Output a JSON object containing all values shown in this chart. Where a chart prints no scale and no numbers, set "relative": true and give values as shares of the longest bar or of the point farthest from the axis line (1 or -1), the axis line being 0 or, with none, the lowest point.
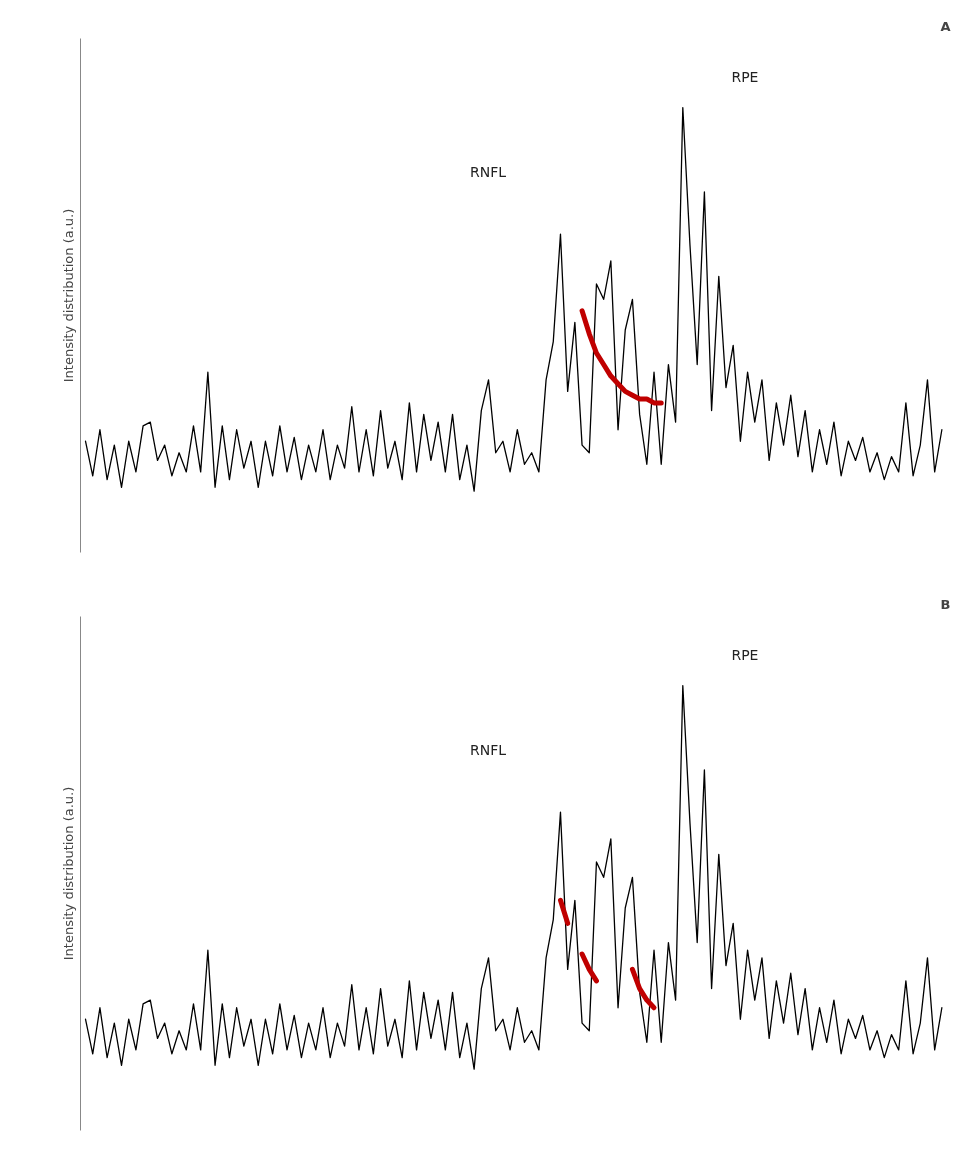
{
  "chart_data": [
    {
      "type": "line",
      "title": "A",
      "ylabel": "Intensity distribution (a.u.)",
      "relative": true,
      "grid": false,
      "annotations": [
        "RNFL",
        "RPE"
      ],
      "categories": [
        null,
        null,
        null,
        null,
        null,
        null,
        null,
        null,
        null,
        null,
        null,
        null,
        null,
        null,
        null,
        null,
        null,
        null,
        null,
        null,
        null,
        null,
        null,
        null,
        null,
        null,
        null,
        null,
        null,
        null,
        null,
        null,
        null,
        null,
        null,
        null,
        null,
        null,
        null,
        null,
        null,
        null,
        null,
        null,
        null,
        null,
        null,
        null,
        null,
        null,
        null,
        null,
        null,
        null,
        null,
        null,
        null,
        null,
        null,
        null,
        null,
        null,
        null,
        null,
        null,
        null,
        null,
        null,
        null,
        null,
        null,
        null,
        null,
        null,
        null,
        null,
        null,
        null,
        null,
        null,
        null,
        null,
        null,
        null,
        null,
        null,
        null,
        null,
        null,
        null,
        null,
        null,
        null,
        null,
        null,
        null,
        null,
        null,
        null,
        null,
        null,
        null,
        null,
        null,
        null,
        null,
        null,
        null,
        null,
        null,
        null,
        null,
        null,
        null,
        null,
        null,
        null,
        null,
        null,
        null
      ],
      "series": [
        {
          "color": "#000000",
          "values": [
            0.13,
            0.04,
            0.16,
            0.03,
            0.12,
            0.01,
            0.13,
            0.05,
            0.17,
            0.18,
            0.08,
            0.12,
            0.04,
            0.1,
            0.05,
            0.17,
            0.05,
            0.31,
            0.01,
            0.17,
            0.03,
            0.16,
            0.06,
            0.13,
            0.01,
            0.13,
            0.04,
            0.17,
            0.05,
            0.14,
            0.03,
            0.12,
            0.05,
            0.16,
            0.03,
            0.12,
            0.06,
            0.22,
            0.05,
            0.16,
            0.04,
            0.21,
            0.06,
            0.13,
            0.03,
            0.23,
            0.05,
            0.2,
            0.08,
            0.18,
            0.05,
            0.2,
            0.03,
            0.12,
            0,
            0.21,
            0.29,
            0.1,
            0.13,
            0.05,
            0.16,
            0.07,
            0.1,
            0.05,
            0.29,
            0.39,
            0.67,
            0.26,
            0.44,
            0.12,
            0.1,
            0.54,
            0.5,
            0.6,
            0.16,
            0.42,
            0.5,
            0.2,
            0.07,
            0.31,
            0.07,
            0.33,
            0.18,
            1.0,
            0.64,
            0.33,
            0.78,
            0.21,
            0.56,
            0.27,
            0.38,
            0.13,
            0.31,
            0.18,
            0.29,
            0.08,
            0.23,
            0.12,
            0.25,
            0.09,
            0.21,
            0.05,
            0.16,
            0.07,
            0.18,
            0.04,
            0.13,
            0.08,
            0.14,
            0.05,
            0.1,
            0.03,
            0.09,
            0.05,
            0.23,
            0.04,
            0.12,
            0.29,
            0.05,
            0.16
          ]
        },
        {
          "color": "#c00000",
          "values": [
            null,
            null,
            null,
            null,
            null,
            null,
            null,
            null,
            null,
            null,
            null,
            null,
            null,
            null,
            null,
            null,
            null,
            null,
            null,
            null,
            null,
            null,
            null,
            null,
            null,
            null,
            null,
            null,
            null,
            null,
            null,
            null,
            null,
            null,
            null,
            null,
            null,
            null,
            null,
            null,
            null,
            null,
            null,
            null,
            null,
            null,
            null,
            null,
            null,
            null,
            null,
            null,
            null,
            null,
            null,
            null,
            null,
            null,
            null,
            null,
            null,
            null,
            null,
            null,
            null,
            null,
            null,
            null,
            null,
            0.47,
            0.41,
            0.36,
            0.33,
            0.3,
            0.28,
            0.26,
            0.25,
            0.24,
            0.24,
            0.23,
            0.23,
            null,
            null,
            null,
            null,
            null,
            null,
            null,
            null,
            null,
            null,
            null,
            null,
            null,
            null,
            null,
            null,
            null,
            null,
            null,
            null,
            null,
            null,
            null,
            null,
            null,
            null,
            null,
            null,
            null,
            null,
            null,
            null,
            null,
            null,
            null,
            null,
            null,
            null,
            null
          ]
        }
      ]
    },
    {
      "type": "line",
      "title": "B",
      "ylabel": "Intensity distribution (a.u.)",
      "relative": true,
      "grid": false,
      "annotations": [
        "RNFL",
        "RPE"
      ],
      "categories": [
        null,
        null,
        null,
        null,
        null,
        null,
        null,
        null,
        null,
        null,
        null,
        null,
        null,
        null,
        null,
        null,
        null,
        null,
        null,
        null,
        null,
        null,
        null,
        null,
        null,
        null,
        null,
        null,
        null,
        null,
        null,
        null,
        null,
        null,
        null,
        null,
        null,
        null,
        null,
        null,
        null,
        null,
        null,
        null,
        null,
        null,
        null,
        null,
        null,
        null,
        null,
        null,
        null,
        null,
        null,
        null,
        null,
        null,
        null,
        null,
        null,
        null,
        null,
        null,
        null,
        null,
        null,
        null,
        null,
        null,
        null,
        null,
        null,
        null,
        null,
        null,
        null,
        null,
        null,
        null,
        null,
        null,
        null,
        null,
        null,
        null,
        null,
        null,
        null,
        null,
        null,
        null,
        null,
        null,
        null,
        null,
        null,
        null,
        null,
        null,
        null,
        null,
        null,
        null,
        null,
        null,
        null,
        null,
        null,
        null,
        null,
        null,
        null,
        null,
        null,
        null,
        null,
        null,
        null,
        null
      ],
      "series": [
        {
          "color": "#000000",
          "values": [
            0.13,
            0.04,
            0.16,
            0.03,
            0.12,
            0.01,
            0.13,
            0.05,
            0.17,
            0.18,
            0.08,
            0.12,
            0.04,
            0.1,
            0.05,
            0.17,
            0.05,
            0.31,
            0.01,
            0.17,
            0.03,
            0.16,
            0.06,
            0.13,
            0.01,
            0.13,
            0.04,
            0.17,
            0.05,
            0.14,
            0.03,
            0.12,
            0.05,
            0.16,
            0.03,
            0.12,
            0.06,
            0.22,
            0.05,
            0.16,
            0.04,
            0.21,
            0.06,
            0.13,
            0.03,
            0.23,
            0.05,
            0.2,
            0.08,
            0.18,
            0.05,
            0.2,
            0.03,
            0.12,
            0,
            0.21,
            0.29,
            0.1,
            0.13,
            0.05,
            0.16,
            0.07,
            0.1,
            0.05,
            0.29,
            0.39,
            0.67,
            0.26,
            0.44,
            0.12,
            0.1,
            0.54,
            0.5,
            0.6,
            0.16,
            0.42,
            0.5,
            0.2,
            0.07,
            0.31,
            0.07,
            0.33,
            0.18,
            1.0,
            0.64,
            0.33,
            0.78,
            0.21,
            0.56,
            0.27,
            0.38,
            0.13,
            0.31,
            0.18,
            0.29,
            0.08,
            0.23,
            0.12,
            0.25,
            0.09,
            0.21,
            0.05,
            0.16,
            0.07,
            0.18,
            0.04,
            0.13,
            0.08,
            0.14,
            0.05,
            0.1,
            0.03,
            0.09,
            0.05,
            0.23,
            0.04,
            0.12,
            0.29,
            0.05,
            0.16
          ]
        },
        {
          "color": "#c00000",
          "values": [
            null,
            null,
            null,
            null,
            null,
            null,
            null,
            null,
            null,
            null,
            null,
            null,
            null,
            null,
            null,
            null,
            null,
            null,
            null,
            null,
            null,
            null,
            null,
            null,
            null,
            null,
            null,
            null,
            null,
            null,
            null,
            null,
            null,
            null,
            null,
            null,
            null,
            null,
            null,
            null,
            null,
            null,
            null,
            null,
            null,
            null,
            null,
            null,
            null,
            null,
            null,
            null,
            null,
            null,
            null,
            null,
            null,
            null,
            null,
            null,
            null,
            null,
            null,
            null,
            null,
            null,
            0.44,
            0.38,
            null,
            0.3,
            0.26,
            0.23,
            null,
            null,
            null,
            null,
            0.26,
            0.21,
            0.18,
            0.16,
            null,
            null,
            null,
            null,
            null,
            null,
            null,
            null,
            null,
            null,
            null,
            null,
            null,
            null,
            null,
            null,
            null,
            null,
            null,
            null,
            null,
            null,
            null,
            null,
            null,
            null,
            null,
            null,
            null,
            null,
            null,
            null,
            null,
            null,
            null,
            null,
            null,
            null,
            null,
            null
          ]
        }
      ]
    }
  ]
}
